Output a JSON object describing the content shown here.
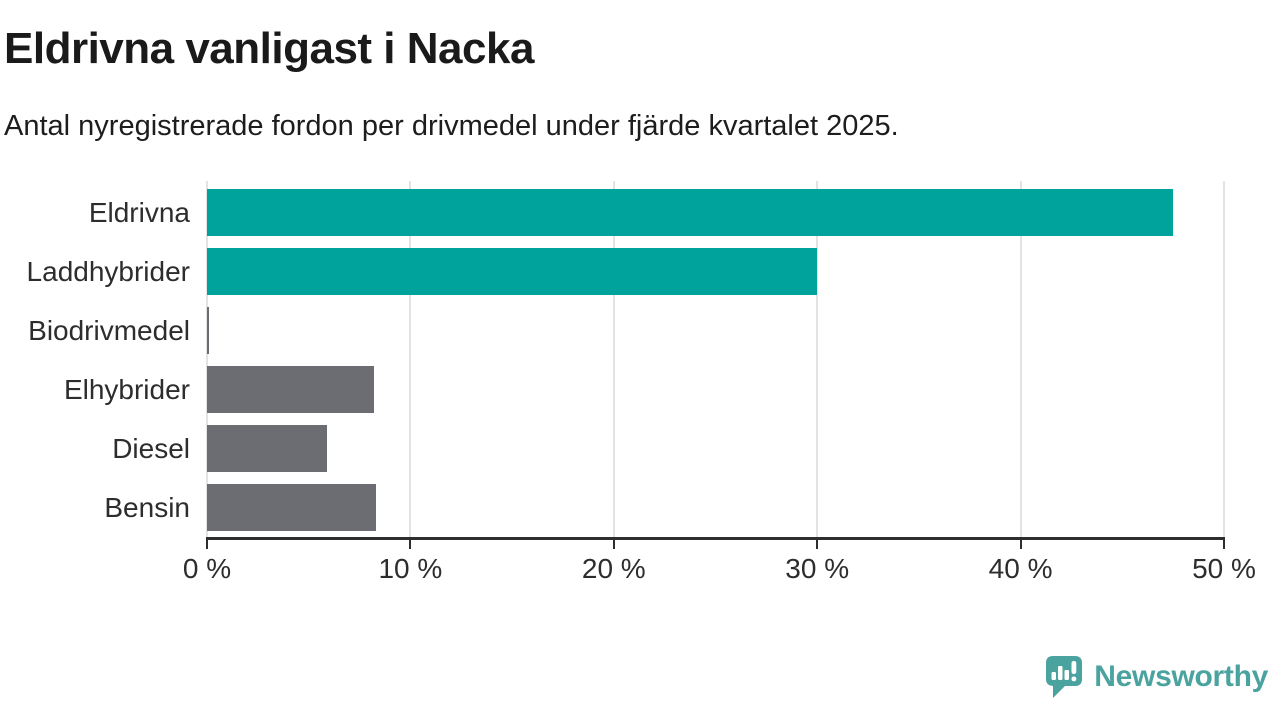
{
  "chart_data": {
    "type": "bar",
    "orientation": "horizontal",
    "title": "Eldrivna vanligast i Nacka",
    "subtitle": "Antal nyregistrerade fordon per drivmedel under fjärde kvartalet 2025.",
    "categories": [
      "Eldrivna",
      "Laddhybrider",
      "Biodrivmedel",
      "Elhybrider",
      "Diesel",
      "Bensin"
    ],
    "values": [
      47.5,
      30.0,
      0.1,
      8.2,
      5.9,
      8.3
    ],
    "value_unit": "%",
    "xlabel": "",
    "ylabel": "",
    "xlim": [
      0,
      50
    ],
    "x_ticks": [
      {
        "value": 0,
        "label": "0 %"
      },
      {
        "value": 10,
        "label": "10 %"
      },
      {
        "value": 20,
        "label": "20 %"
      },
      {
        "value": 30,
        "label": "30 %"
      },
      {
        "value": 40,
        "label": "40 %"
      },
      {
        "value": 50,
        "label": "50 %"
      }
    ],
    "bar_colors": [
      "#00a39b",
      "#00a39b",
      "#6c6c73",
      "#6c6c73",
      "#6c6c73",
      "#6c6c73"
    ],
    "colors": {
      "highlight": "#00a39b",
      "default": "#6c6c73",
      "grid": "#e3e3e5",
      "axis": "#2e2e2e",
      "title_text": "#1a1a1a",
      "body_text": "#2d2d2d"
    },
    "grid": true,
    "legend": false
  },
  "footer": {
    "brand": "Newsworthy",
    "brand_color": "#4aa39e",
    "logo_icon": "newsworthy-speech-bubble-bar-chart-icon"
  }
}
